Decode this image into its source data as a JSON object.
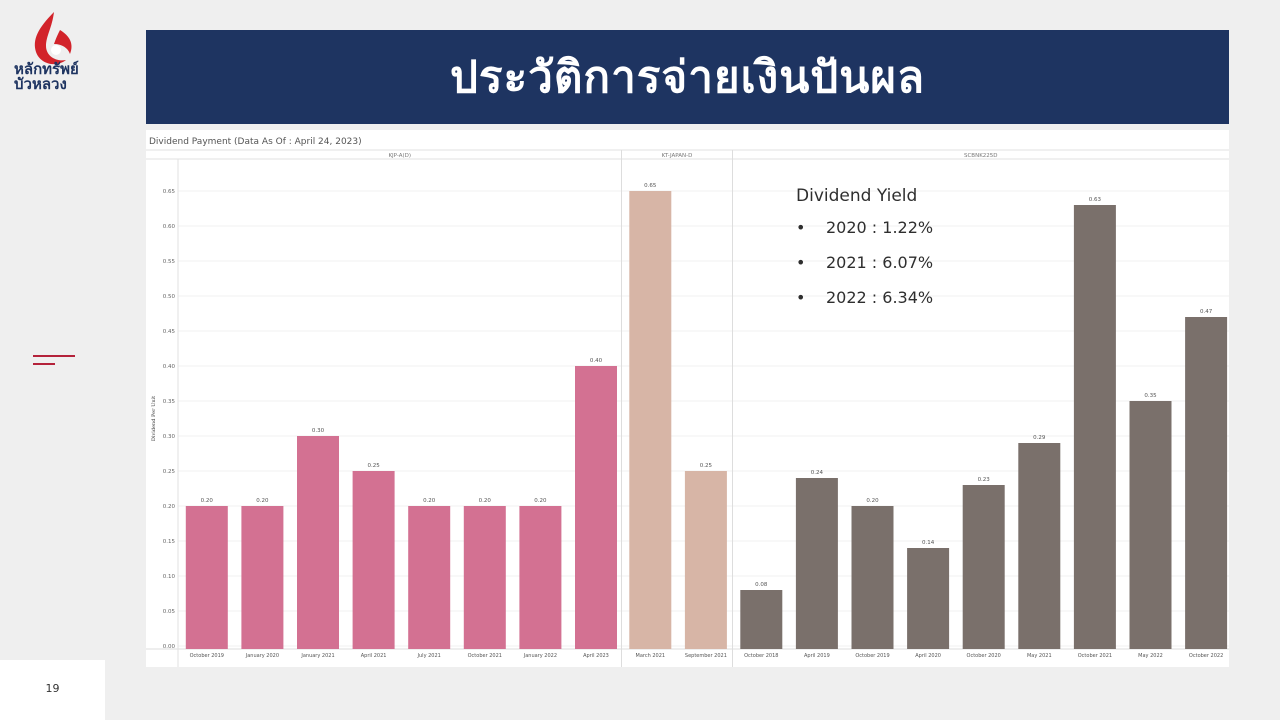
{
  "logo": {
    "line1": "หลักทรัพย์",
    "line2": "บัวหลวง",
    "colors": {
      "red": "#d2232a",
      "navy": "#1e3461"
    }
  },
  "page_number": "19",
  "title": "ประวัติการจ่ายเงินปันผล",
  "theme": {
    "banner": "#1e3461",
    "accent": "#b4223a"
  },
  "chart_data": {
    "type": "bar",
    "title": "Dividend Payment   (Data As Of : April 24, 2023)",
    "ylabel": "Dividend Per Unit",
    "ylim": [
      0,
      0.68
    ],
    "yticks": [
      "0.00",
      "0.05",
      "0.10",
      "0.15",
      "0.20",
      "0.25",
      "0.30",
      "0.35",
      "0.40",
      "0.45",
      "0.50",
      "0.55",
      "0.60",
      "0.65"
    ],
    "grid": true,
    "panels": [
      {
        "name": "KJP-A(D)",
        "color": "#d37192",
        "categories": [
          "October 2019",
          "January 2020",
          "January 2021",
          "April 2021",
          "July 2021",
          "October 2021",
          "January 2022",
          "April 2023"
        ],
        "values": [
          0.2,
          0.2,
          0.3,
          0.25,
          0.2,
          0.2,
          0.2,
          0.4
        ],
        "labels": [
          "0.20",
          "0.20",
          "0.30",
          "0.25",
          "0.20",
          "0.20",
          "0.20",
          "0.40"
        ]
      },
      {
        "name": "KT-JAPAN-D",
        "color": "#d7b5a6",
        "categories": [
          "March 2021",
          "September 2021"
        ],
        "values": [
          0.65,
          0.25
        ],
        "labels": [
          "0.65",
          "0.25"
        ]
      },
      {
        "name": "SCBNK225D",
        "color": "#7a706b",
        "categories": [
          "October 2018",
          "April 2019",
          "October 2019",
          "April 2020",
          "October 2020",
          "May 2021",
          "October 2021",
          "May 2022",
          "October 2022"
        ],
        "values": [
          0.08,
          0.24,
          0.2,
          0.14,
          0.23,
          0.29,
          0.63,
          0.35,
          0.47
        ],
        "labels": [
          "0.08",
          "0.24",
          "0.20",
          "0.14",
          "0.23",
          "0.29",
          "0.63",
          "0.35",
          "0.47"
        ]
      }
    ]
  },
  "dividend_yield": {
    "title": "Dividend Yield",
    "items": [
      "2020 : 1.22%",
      "2021 : 6.07%",
      "2022 : 6.34%"
    ],
    "bullet": "•"
  }
}
